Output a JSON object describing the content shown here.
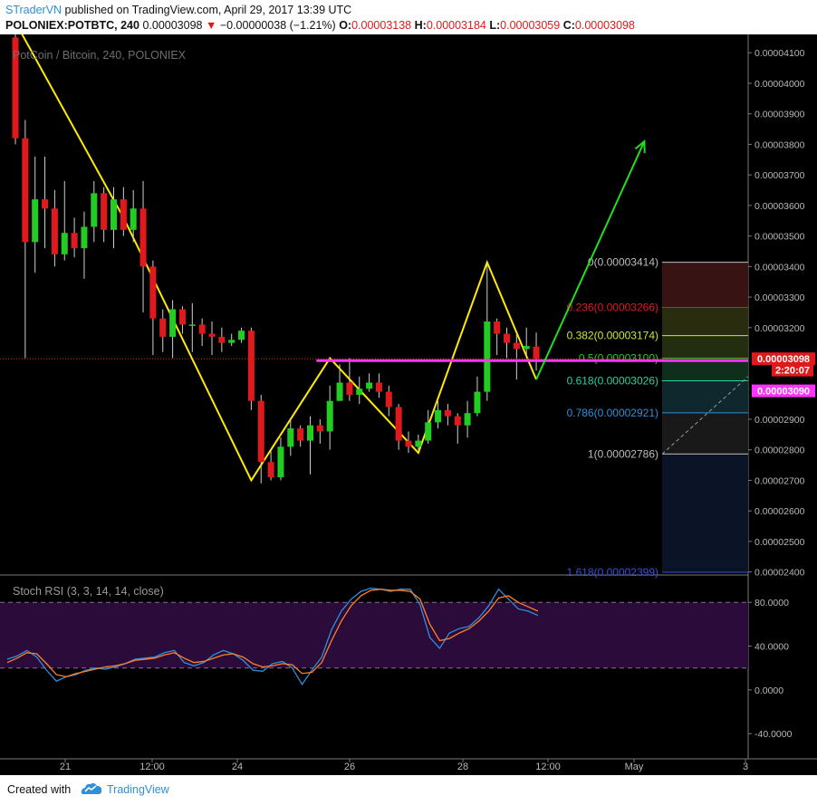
{
  "header": {
    "author": "STraderVN",
    "published": "published on TradingView.com, April 29, 2017 13:39 UTC",
    "symbol": "POLONIEX:POTBTC, 240",
    "last": "0.00003098",
    "change": "−0.00000038 (−1.21%)",
    "open_label": "O:",
    "open": "0.00003138",
    "high_label": "H:",
    "high": "0.00003184",
    "low_label": "L:",
    "low": "0.00003059",
    "close_label": "C:",
    "close": "0.00003098"
  },
  "footer": {
    "created_with": "Created with",
    "brand": "TradingView"
  },
  "colors": {
    "background": "#000000",
    "up": "#22cc22",
    "down": "#e0191d",
    "wick": "#cfcfcf",
    "pattern_line": "#ffea00",
    "projection": "#22dd22",
    "support": "#ff33ff",
    "k_line": "#2f8fd8",
    "d_line": "#ff7f27",
    "rsi_band": "#2a0b3a"
  },
  "chart_data": [
    {
      "type": "candlestick",
      "title": "PotCoin / Bitcoin, 240, POLONIEX",
      "x_tick_labels": [
        "21",
        "12:00",
        "24",
        "26",
        "28",
        "12:00",
        "May",
        "3"
      ],
      "y_tick_labels": [
        "0.00004100",
        "0.00004000",
        "0.00003900",
        "0.00003800",
        "0.00003700",
        "0.00003600",
        "0.00003500",
        "0.00003400",
        "0.00003300",
        "0.00003200",
        "0.00002900",
        "0.00002800",
        "0.00002700",
        "0.00002600",
        "0.00002500",
        "0.00002400"
      ],
      "ylim": [
        2.39e-05,
        4.16e-05
      ],
      "y_scale": 1e-08,
      "candles": [
        [
          4150,
          3820,
          4160,
          3800
        ],
        [
          3820,
          3480,
          3880,
          3100
        ],
        [
          3480,
          3620,
          3760,
          3380
        ],
        [
          3620,
          3590,
          3760,
          3460
        ],
        [
          3590,
          3440,
          3650,
          3400
        ],
        [
          3440,
          3510,
          3680,
          3420
        ],
        [
          3510,
          3460,
          3560,
          3430
        ],
        [
          3460,
          3530,
          3580,
          3360
        ],
        [
          3530,
          3640,
          3680,
          3480
        ],
        [
          3640,
          3520,
          3660,
          3480
        ],
        [
          3520,
          3620,
          3660,
          3460
        ],
        [
          3620,
          3520,
          3660,
          3500
        ],
        [
          3520,
          3590,
          3650,
          3480
        ],
        [
          3590,
          3400,
          3680,
          3250
        ],
        [
          3400,
          3230,
          3420,
          3110
        ],
        [
          3230,
          3170,
          3260,
          3120
        ],
        [
          3170,
          3260,
          3290,
          3100
        ],
        [
          3260,
          3210,
          3270,
          3180
        ],
        [
          3210,
          3210,
          3280,
          3120
        ],
        [
          3210,
          3180,
          3230,
          3140
        ],
        [
          3180,
          3170,
          3220,
          3110
        ],
        [
          3170,
          3150,
          3200,
          3120
        ],
        [
          3150,
          3160,
          3180,
          3140
        ],
        [
          3160,
          3190,
          3200,
          3150
        ],
        [
          3190,
          2960,
          3200,
          2930
        ],
        [
          2960,
          2760,
          2980,
          2690
        ],
        [
          2760,
          2710,
          2800,
          2700
        ],
        [
          2710,
          2810,
          2840,
          2700
        ],
        [
          2810,
          2870,
          2900,
          2780
        ],
        [
          2870,
          2830,
          2880,
          2810
        ],
        [
          2830,
          2880,
          2910,
          2720
        ],
        [
          2880,
          2860,
          2900,
          2820
        ],
        [
          2860,
          2960,
          3010,
          2800
        ],
        [
          2960,
          3020,
          3080,
          3000
        ],
        [
          3020,
          2980,
          3100,
          2960
        ],
        [
          2980,
          3000,
          3040,
          2950
        ],
        [
          3000,
          3020,
          3050,
          2990
        ],
        [
          3020,
          2990,
          3050,
          2970
        ],
        [
          2990,
          2940,
          3010,
          2910
        ],
        [
          2940,
          2830,
          2950,
          2800
        ],
        [
          2830,
          2810,
          2860,
          2790
        ],
        [
          2810,
          2830,
          2850,
          2800
        ],
        [
          2830,
          2890,
          2930,
          2820
        ],
        [
          2890,
          2930,
          2960,
          2870
        ],
        [
          2930,
          2910,
          2950,
          2880
        ],
        [
          2910,
          2880,
          2920,
          2820
        ],
        [
          2880,
          2920,
          2960,
          2840
        ],
        [
          2920,
          2990,
          3040,
          2910
        ],
        [
          2990,
          3220,
          3414,
          2960
        ],
        [
          3220,
          3180,
          3230,
          3110
        ],
        [
          3180,
          3150,
          3200,
          3100
        ],
        [
          3150,
          3130,
          3180,
          3030
        ],
        [
          3130,
          3140,
          3200,
          3110
        ],
        [
          3138,
          3098,
          3184,
          3059
        ]
      ],
      "fibonacci": [
        {
          "level": "0",
          "price": 3.414e-05,
          "label": "0(0.00003414)",
          "color": "#bdbdbd"
        },
        {
          "level": "0.236",
          "price": 3.266e-05,
          "label": "0.236(0.00003266)",
          "color": "#e0191d"
        },
        {
          "level": "0.382",
          "price": 3.174e-05,
          "label": "0.382(0.00003174)",
          "color": "#c8e83a"
        },
        {
          "level": "0.5",
          "price": 3.1e-05,
          "label": "0.5(0.00003100)",
          "color": "#22cc22"
        },
        {
          "level": "0.618",
          "price": 3.026e-05,
          "label": "0.618(0.00003026)",
          "color": "#22d4a0"
        },
        {
          "level": "0.786",
          "price": 2.921e-05,
          "label": "0.786(0.00002921)",
          "color": "#2f8fd8"
        },
        {
          "level": "1",
          "price": 2.786e-05,
          "label": "1(0.00002786)",
          "color": "#bdbdbd"
        },
        {
          "level": "1.618",
          "price": 2.399e-05,
          "label": "1.618(0.00002399)",
          "color": "#3c4fd8"
        }
      ],
      "price_labels": [
        {
          "text": "0.00003098",
          "bg": "#e0191d",
          "color": "#ffffff"
        },
        {
          "text": "2:20:07",
          "bg": "#e0191d",
          "color": "#ffffff"
        },
        {
          "text": "0.00003090",
          "bg": "#ff33ff",
          "color": "#ffffff"
        }
      ],
      "pattern_points": [
        [
          0,
          4200
        ],
        [
          11,
          3560
        ],
        [
          24,
          2700
        ],
        [
          32,
          3100
        ],
        [
          41,
          2790
        ],
        [
          48,
          3414
        ],
        [
          53,
          3030
        ]
      ],
      "projection": [
        [
          53,
          3030
        ],
        [
          64,
          3810
        ]
      ]
    },
    {
      "type": "line",
      "title": "Stoch RSI (3, 3, 14, 14, close)",
      "y_tick_labels": [
        "80.0000",
        "40.0000",
        "0.0000",
        "-40.0000"
      ],
      "ylim": [
        -63,
        105
      ],
      "band": [
        20,
        80
      ],
      "series": [
        {
          "values": [
            28,
            31,
            36,
            30,
            18,
            8,
            12,
            14,
            18,
            20,
            19,
            21,
            24,
            28,
            29,
            30,
            34,
            36,
            25,
            22,
            25,
            32,
            36,
            33,
            27,
            18,
            17,
            24,
            26,
            20,
            5,
            18,
            30,
            55,
            72,
            83,
            90,
            93,
            92,
            90,
            92,
            92,
            78,
            48,
            38,
            52,
            56,
            58,
            66,
            77,
            92,
            83,
            74,
            72,
            68
          ]
        },
        {
          "values": [
            25,
            29,
            34,
            33,
            24,
            14,
            12,
            15,
            17,
            19,
            21,
            22,
            24,
            27,
            28,
            29,
            32,
            34,
            29,
            25,
            26,
            29,
            32,
            33,
            30,
            24,
            21,
            22,
            24,
            23,
            15,
            16,
            25,
            45,
            63,
            77,
            86,
            91,
            92,
            91,
            91,
            90,
            83,
            60,
            45,
            47,
            52,
            56,
            63,
            72,
            84,
            86,
            80,
            76,
            72
          ]
        }
      ]
    }
  ]
}
